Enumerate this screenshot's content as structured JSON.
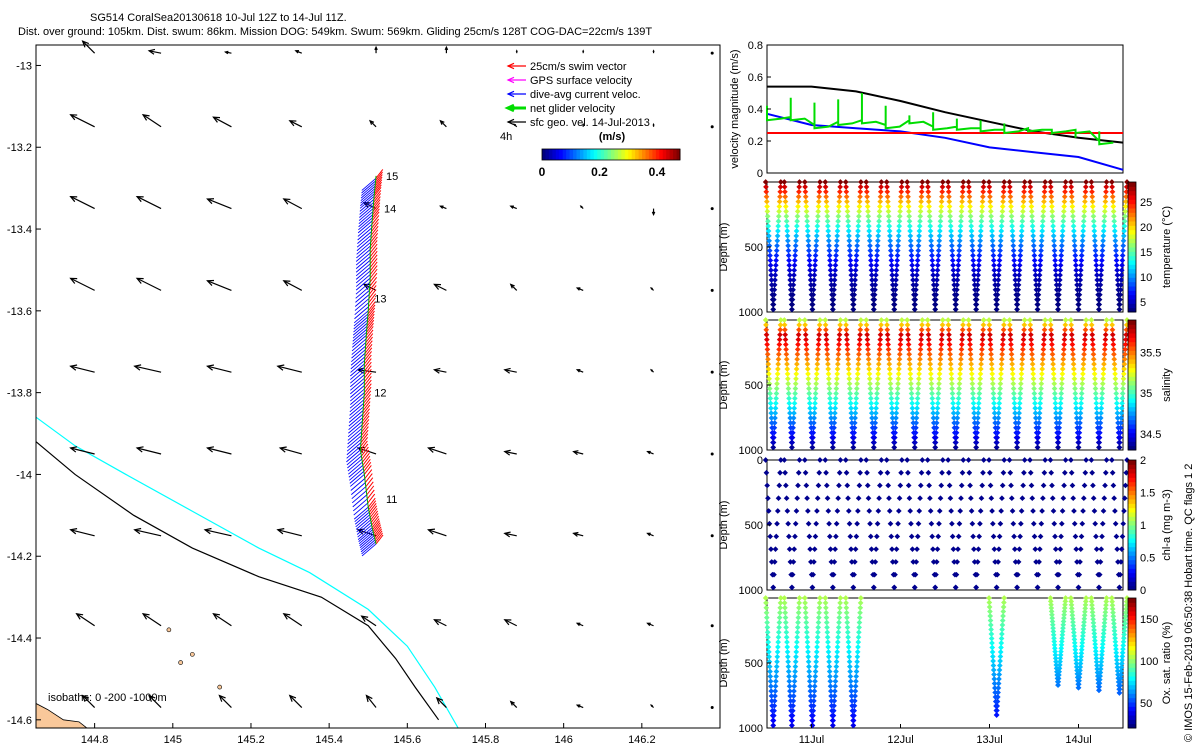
{
  "header": {
    "line1": "SG514 CoralSea20130618 10-Jul 12Z to 14-Jul 11Z.",
    "line2": "Dist. over ground: 105km. Dist. swum: 86km. Mission DOG: 549km. Swum: 569km. Gliding 25cm/s 128T COG-DAC=22cm/s 139T"
  },
  "credit": "© IMOS 15-Feb-2019 06:50:38 Hobart time. QC flags 1  2",
  "colors": {
    "swim_vector": "#ff0000",
    "gps_surface": "#ff00ff",
    "dac": "#0000ff",
    "net_velocity": "#00dd00",
    "sfc_geo": "#000000",
    "isobath_0": "#00ffff",
    "isobath_200": "#000000",
    "land": "#f9c89a"
  },
  "chart_data": [
    {
      "type": "vector_map",
      "xlim": [
        144.65,
        146.4
      ],
      "ylim": [
        -14.62,
        -12.95
      ],
      "x_ticks": [
        "144.8",
        "145",
        "145.2",
        "145.4",
        "145.6",
        "145.8",
        "146",
        "146.2"
      ],
      "y_ticks": [
        "-13",
        "-13.2",
        "-13.4",
        "-13.6",
        "-13.8",
        "-14",
        "-14.2",
        "-14.4",
        "-14.6"
      ],
      "legend": [
        {
          "label": "25cm/s swim vector",
          "color": "#ff0000"
        },
        {
          "label": "GPS surface velocity",
          "color": "#ff00ff"
        },
        {
          "label": "dive-avg current veloc.",
          "color": "#0000ff"
        },
        {
          "label": "net glider velocity",
          "color": "#00dd00"
        },
        {
          "label": "sfc geo. vel. 14-Jul-2013",
          "color": "#000000"
        }
      ],
      "legend_placement": "top-right",
      "colorbar": {
        "title": "(m/s)",
        "ticks": [
          "0",
          "0.2",
          "0.4"
        ],
        "range": [
          0,
          0.48
        ]
      },
      "track_day_labels": [
        {
          "label": "15",
          "lon": 145.53,
          "lat": -13.27
        },
        {
          "label": "14",
          "lon": 145.525,
          "lat": -13.35
        },
        {
          "label": "13",
          "lon": 145.5,
          "lat": -13.57
        },
        {
          "label": "12",
          "lon": 145.5,
          "lat": -13.8
        },
        {
          "label": "11",
          "lon": 145.53,
          "lat": -14.06
        }
      ],
      "vector_time_label": "4h",
      "isobath_caption": "isobaths: 0  -200  -1000m",
      "track": [
        [
          145.52,
          -14.17
        ],
        [
          145.51,
          -14.13
        ],
        [
          145.5,
          -14.08
        ],
        [
          145.49,
          -14.0
        ],
        [
          145.48,
          -13.94
        ],
        [
          145.485,
          -13.87
        ],
        [
          145.49,
          -13.8
        ],
        [
          145.49,
          -13.73
        ],
        [
          145.495,
          -13.66
        ],
        [
          145.5,
          -13.6
        ],
        [
          145.505,
          -13.52
        ],
        [
          145.505,
          -13.45
        ],
        [
          145.51,
          -13.38
        ],
        [
          145.515,
          -13.32
        ],
        [
          145.52,
          -13.27
        ]
      ],
      "dac_vectors_u_v": [
        -0.1,
        0.12
      ],
      "geo_grid_lons": [
        144.8,
        144.97,
        145.15,
        145.33,
        145.52,
        145.7,
        145.88,
        146.05,
        146.23,
        146.38
      ],
      "geo_grid_lats": [
        -12.97,
        -13.15,
        -13.35,
        -13.55,
        -13.75,
        -13.95,
        -14.15,
        -14.37,
        -14.57
      ],
      "geo_grid_u": [
        [
          -0.1,
          -0.1,
          -0.05,
          -0.05,
          0,
          0,
          0,
          0,
          0,
          0
        ],
        [
          -0.2,
          -0.15,
          -0.15,
          -0.1,
          -0.05,
          -0.05,
          -0.02,
          0,
          0,
          0
        ],
        [
          -0.2,
          -0.2,
          -0.2,
          -0.15,
          -0.1,
          -0.05,
          -0.05,
          -0.02,
          0,
          0
        ],
        [
          -0.2,
          -0.2,
          -0.2,
          -0.15,
          -0.1,
          -0.1,
          -0.05,
          -0.05,
          -0.02,
          0
        ],
        [
          -0.2,
          -0.22,
          -0.2,
          -0.2,
          -0.15,
          -0.1,
          -0.1,
          -0.05,
          -0.02,
          0
        ],
        [
          -0.2,
          -0.2,
          -0.2,
          -0.18,
          -0.15,
          -0.15,
          -0.1,
          -0.08,
          -0.05,
          0
        ],
        [
          -0.2,
          -0.22,
          -0.22,
          -0.2,
          -0.15,
          -0.15,
          -0.1,
          -0.08,
          -0.05,
          0
        ],
        [
          -0.15,
          -0.15,
          -0.15,
          -0.15,
          -0.12,
          -0.1,
          -0.1,
          -0.05,
          -0.05,
          0
        ],
        [
          -0.1,
          -0.1,
          -0.1,
          -0.1,
          -0.08,
          -0.08,
          -0.05,
          -0.05,
          -0.02,
          0
        ]
      ],
      "geo_grid_v": [
        [
          0.1,
          0.02,
          0.01,
          0.02,
          0.05,
          0.05,
          0.02,
          0.02,
          0.02,
          0
        ],
        [
          0.1,
          0.1,
          0.08,
          0.05,
          0.05,
          0.05,
          0.02,
          0.02,
          0.02,
          0
        ],
        [
          0.1,
          0.1,
          0.08,
          0.08,
          0.05,
          0.02,
          0.02,
          0.02,
          -0.05,
          0
        ],
        [
          0.1,
          0.1,
          0.08,
          0.08,
          0.05,
          0.05,
          0.05,
          0.02,
          0.02,
          0
        ],
        [
          0.05,
          0.05,
          0.05,
          0.05,
          0.02,
          0.02,
          0.02,
          0.02,
          0.02,
          0
        ],
        [
          0.05,
          0.05,
          0.05,
          0.05,
          0.05,
          0.05,
          0.02,
          0.02,
          0.02,
          0
        ],
        [
          0.05,
          0.05,
          0.05,
          0.05,
          0.05,
          0.05,
          0.02,
          0.02,
          0.02,
          0
        ],
        [
          0.1,
          0.1,
          0.1,
          0.1,
          0.08,
          0.05,
          0.05,
          0.02,
          0.02,
          0
        ],
        [
          0.1,
          0.1,
          0.1,
          0.1,
          0.1,
          0.08,
          0.05,
          0.02,
          0.02,
          0
        ]
      ]
    },
    {
      "type": "line",
      "ylabel": "velocity magnitude (m/s)",
      "ylim": [
        0,
        0.8
      ],
      "y_ticks": [
        "0",
        "0.2",
        "0.4",
        "0.6",
        "0.8"
      ],
      "xlim": [
        0,
        4
      ],
      "series": [
        {
          "color": "#000000",
          "x": [
            0,
            0.5,
            1,
            1.5,
            2,
            2.5,
            3,
            3.5,
            4
          ],
          "y": [
            0.54,
            0.54,
            0.51,
            0.45,
            0.38,
            0.32,
            0.26,
            0.22,
            0.19
          ]
        },
        {
          "color": "#0000ff",
          "x": [
            0,
            0.5,
            1,
            1.5,
            2,
            2.5,
            3,
            3.5,
            4
          ],
          "y": [
            0.37,
            0.3,
            0.28,
            0.26,
            0.22,
            0.16,
            0.13,
            0.1,
            0.02
          ]
        },
        {
          "color": "#ff0000",
          "x": [
            0,
            4
          ],
          "y": [
            0.25,
            0.25
          ]
        },
        {
          "color": "#00dd00",
          "x": [
            0,
            0.1,
            0.2,
            0.5,
            0.8,
            1.0,
            1.4,
            1.8,
            2.2,
            2.6,
            3.0,
            3.4,
            3.8,
            4.0
          ],
          "y": [
            0.35,
            0.3,
            0.32,
            0.33,
            0.3,
            0.33,
            0.29,
            0.29,
            0.28,
            0.27,
            0.28,
            0.27,
            0.27,
            0.2
          ],
          "peaks": [
            0.42,
            0.47,
            0.44,
            0.46,
            0.5,
            0.42,
            0.36,
            0.38,
            0.34,
            0.33,
            0.31,
            0.28,
            0.24,
            0.22,
            0.26
          ]
        }
      ]
    },
    {
      "type": "scatter",
      "ylabel": "Depth (m)",
      "zlabel": "temperature (°C)",
      "ylim": [
        1000,
        0
      ],
      "y_ticks": [
        "500",
        "1000"
      ],
      "cb_range": [
        3,
        29
      ],
      "cb_ticks": [
        "5",
        "10",
        "15",
        "20",
        "25"
      ],
      "profile": "temperature",
      "dives": [
        0.07,
        0.28,
        0.51,
        0.74,
        0.97,
        1.2,
        1.43,
        1.66,
        1.89,
        2.12,
        2.35,
        2.58,
        2.81,
        3.04,
        3.27,
        3.5,
        3.73,
        3.96
      ]
    },
    {
      "type": "scatter",
      "ylabel": "Depth (m)",
      "zlabel": "salinity",
      "ylim": [
        1000,
        0
      ],
      "y_ticks": [
        "500",
        "1000"
      ],
      "cb_range": [
        34.3,
        35.9
      ],
      "cb_ticks": [
        "34.5",
        "35",
        "35.5"
      ],
      "profile": "salinity",
      "dives": [
        0.07,
        0.28,
        0.51,
        0.74,
        0.97,
        1.2,
        1.43,
        1.66,
        1.89,
        2.12,
        2.35,
        2.58,
        2.81,
        3.04,
        3.27,
        3.5,
        3.73,
        3.96
      ]
    },
    {
      "type": "scatter",
      "ylabel": "Depth (m)",
      "zlabel": "chl-a (mg m-3)",
      "ylim": [
        1000,
        0
      ],
      "y_ticks": [
        "0",
        "500",
        "1000"
      ],
      "cb_range": [
        0,
        2
      ],
      "cb_ticks": [
        "0",
        "0.5",
        "1",
        "1.5",
        "2"
      ],
      "profile": "chl",
      "dives": [
        0.07,
        0.28,
        0.51,
        0.74,
        0.97,
        1.2,
        1.43,
        1.66,
        1.89,
        2.12,
        2.35,
        2.58,
        2.81,
        3.04,
        3.27,
        3.5,
        3.73,
        3.96
      ]
    },
    {
      "type": "scatter",
      "ylabel": "Depth (m)",
      "zlabel": "Ox. sat. ratio (%)",
      "ylim": [
        1000,
        0
      ],
      "y_ticks": [
        "500",
        "1000"
      ],
      "cb_range": [
        20,
        175
      ],
      "cb_ticks": [
        "50",
        "100",
        "150"
      ],
      "x_ticks": [
        "11Jul",
        "12Jul",
        "13Jul",
        "14Jul"
      ],
      "x_tick_pos": [
        0.5,
        1.5,
        2.5,
        3.5
      ],
      "profile": "oxygen",
      "dives": [
        0.07,
        0.28,
        0.51,
        0.74,
        0.97,
        2.58,
        3.27,
        3.5,
        3.73,
        3.96
      ]
    }
  ]
}
